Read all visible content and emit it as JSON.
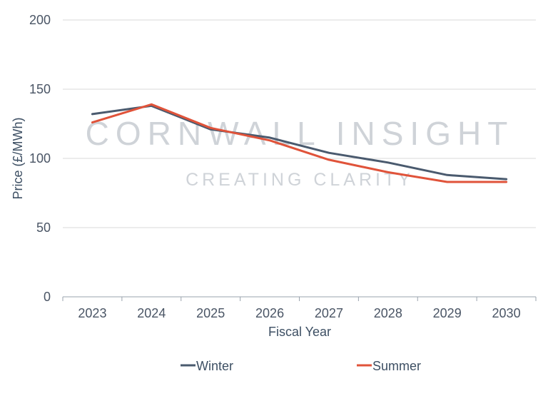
{
  "chart_data": {
    "type": "line",
    "title": "",
    "xlabel": "Fiscal Year",
    "ylabel": "Price (£/MWh)",
    "ylim": [
      0,
      200
    ],
    "yticks": [
      0,
      50,
      100,
      150,
      200
    ],
    "categories": [
      "2023",
      "2024",
      "2025",
      "2026",
      "2027",
      "2028",
      "2029",
      "2030"
    ],
    "grid": true,
    "legend_position": "bottom",
    "series": [
      {
        "name": "Winter",
        "color": "#4a5a6e",
        "values": [
          132,
          138,
          121,
          115,
          104,
          97,
          88,
          85
        ]
      },
      {
        "name": "Summer",
        "color": "#e0533a",
        "values": [
          126,
          139,
          122,
          113,
          99,
          90,
          83,
          83
        ]
      }
    ]
  },
  "watermark": {
    "line1": "CORNWALL INSIGHT",
    "line2": "CREATING CLARITY"
  }
}
